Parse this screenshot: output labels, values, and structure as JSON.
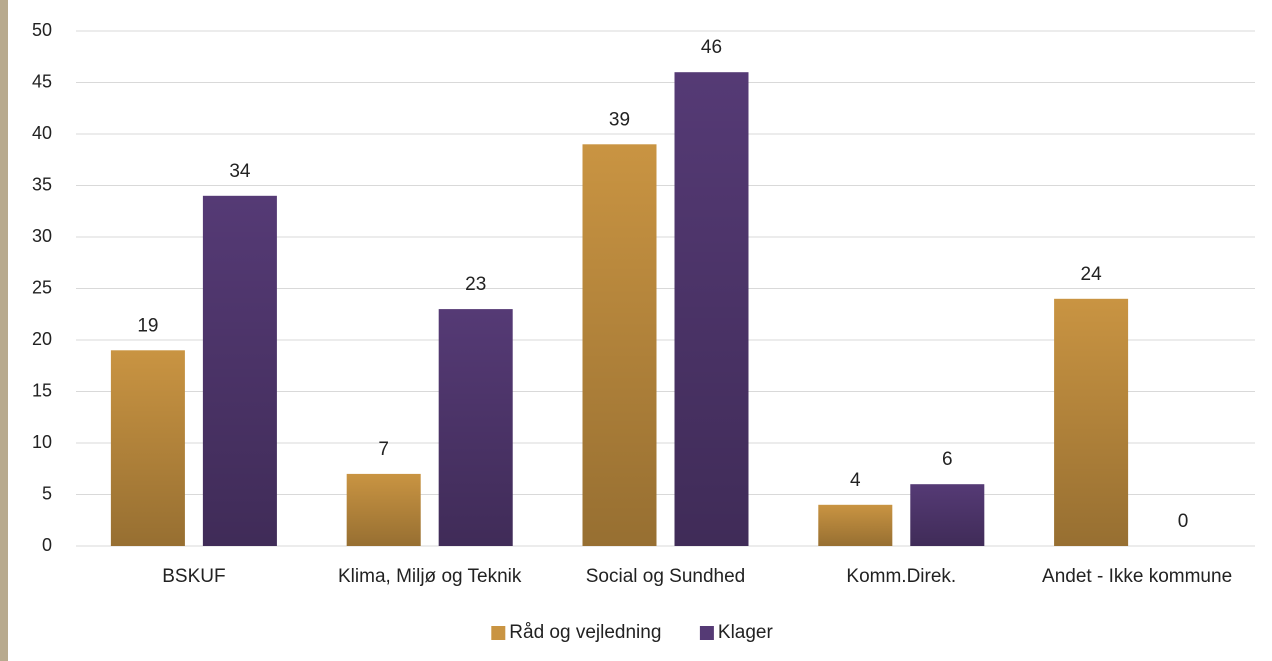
{
  "chart_data": {
    "type": "bar",
    "categories": [
      "BSKUF",
      "Klima, Miljø og Teknik",
      "Social og Sundhed",
      "Komm.Direk.",
      "Andet - Ikke kommune"
    ],
    "series": [
      {
        "name": "Råd og vejledning",
        "color": "#c99442",
        "values": [
          19,
          7,
          39,
          4,
          24
        ]
      },
      {
        "name": "Klager",
        "color": "#553a75",
        "values": [
          34,
          23,
          46,
          6,
          0
        ]
      }
    ],
    "ylim": [
      0,
      50
    ],
    "yticks": [
      0,
      5,
      10,
      15,
      20,
      25,
      30,
      35,
      40,
      45,
      50
    ],
    "grid": true,
    "legend": "bottom"
  }
}
